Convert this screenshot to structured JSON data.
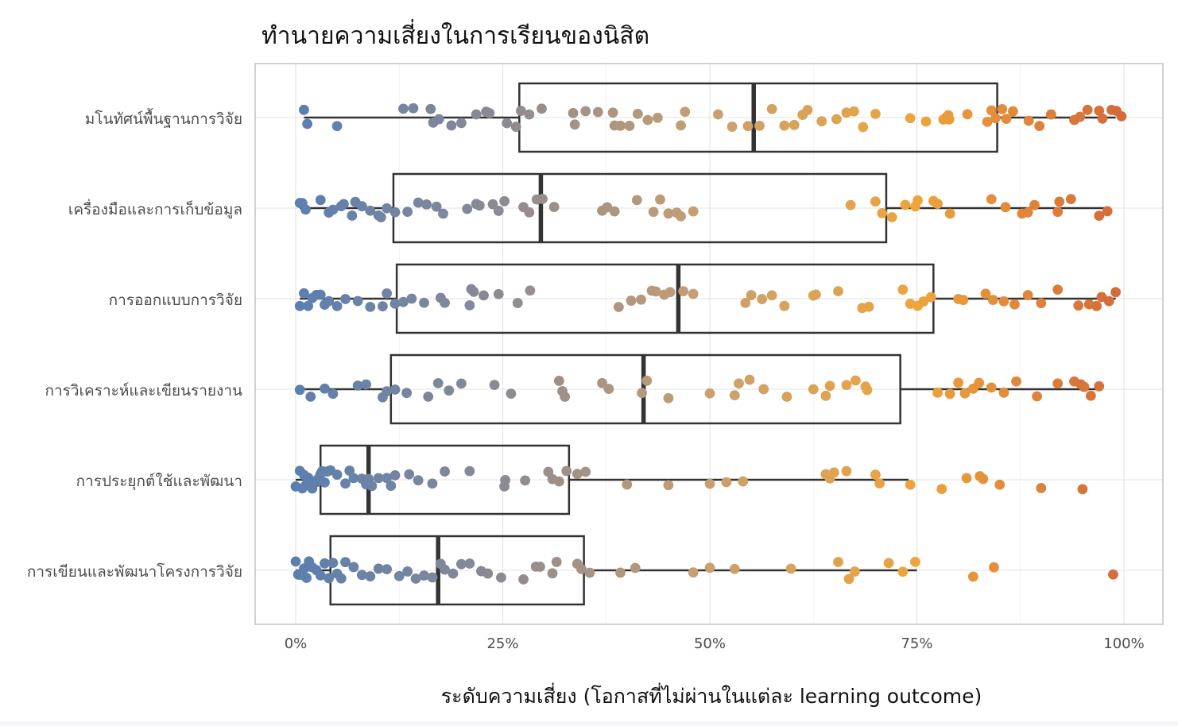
{
  "chart_data": {
    "type": "box_jitter",
    "title": "ทำนายความเสี่ยงในการเรียนของนิสิต",
    "xlabel": "ระดับความเสี่ยง (โอกาสที่ไม่ผ่านในแต่ละ learning outcome)",
    "ylabel": "",
    "xlim": [
      0,
      1
    ],
    "x_ticks": [
      {
        "value": 0,
        "label": "0%"
      },
      {
        "value": 0.25,
        "label": "25%"
      },
      {
        "value": 0.5,
        "label": "50%"
      },
      {
        "value": 0.75,
        "label": "75%"
      },
      {
        "value": 1,
        "label": "100%"
      }
    ],
    "grid": true,
    "legend": "none",
    "color_scale": [
      "#5a7fb0",
      "#8d8a92",
      "#c9a071",
      "#eda53c",
      "#d4693a"
    ],
    "categories": [
      {
        "name": "มโนทัศน์พื้นฐานการวิจัย",
        "q1": 0.27,
        "median": 0.553,
        "q3": 0.847,
        "whisker_low": 0.01,
        "whisker_high": 0.99,
        "points": [
          0.01,
          0.014,
          0.05,
          0.13,
          0.142,
          0.163,
          0.166,
          0.173,
          0.188,
          0.2,
          0.218,
          0.23,
          0.234,
          0.255,
          0.266,
          0.272,
          0.282,
          0.297,
          0.335,
          0.35,
          0.337,
          0.365,
          0.385,
          0.383,
          0.392,
          0.403,
          0.413,
          0.425,
          0.437,
          0.47,
          0.465,
          0.51,
          0.527,
          0.546,
          0.56,
          0.575,
          0.59,
          0.602,
          0.612,
          0.618,
          0.635,
          0.653,
          0.665,
          0.674,
          0.685,
          0.7,
          0.742,
          0.761,
          0.782,
          0.785,
          0.788,
          0.789,
          0.811,
          0.835,
          0.84,
          0.845,
          0.853,
          0.858,
          0.866,
          0.885,
          0.898,
          0.912,
          0.94,
          0.947,
          0.956,
          0.97,
          0.974,
          0.985,
          0.991,
          0.997
        ]
      },
      {
        "name": "เครื่องมือและการเก็บข้อมูล",
        "q1": 0.118,
        "median": 0.296,
        "q3": 0.713,
        "whisker_low": 0.005,
        "whisker_high": 0.98,
        "points": [
          0.005,
          0.008,
          0.012,
          0.03,
          0.04,
          0.045,
          0.055,
          0.058,
          0.068,
          0.072,
          0.08,
          0.09,
          0.1,
          0.103,
          0.11,
          0.12,
          0.135,
          0.148,
          0.158,
          0.17,
          0.178,
          0.207,
          0.218,
          0.222,
          0.238,
          0.245,
          0.252,
          0.275,
          0.282,
          0.291,
          0.298,
          0.312,
          0.37,
          0.376,
          0.385,
          0.412,
          0.432,
          0.44,
          0.45,
          0.46,
          0.465,
          0.48,
          0.67,
          0.7,
          0.708,
          0.72,
          0.736,
          0.748,
          0.751,
          0.77,
          0.775,
          0.79,
          0.84,
          0.857,
          0.877,
          0.884,
          0.892,
          0.92,
          0.922,
          0.936,
          0.97,
          0.98
        ]
      },
      {
        "name": "การออกแบบการวิจัย",
        "q1": 0.122,
        "median": 0.462,
        "q3": 0.77,
        "whisker_low": 0.005,
        "whisker_high": 0.99,
        "points": [
          0.005,
          0.01,
          0.015,
          0.02,
          0.025,
          0.03,
          0.035,
          0.04,
          0.05,
          0.06,
          0.075,
          0.09,
          0.105,
          0.11,
          0.12,
          0.13,
          0.14,
          0.155,
          0.175,
          0.18,
          0.21,
          0.212,
          0.215,
          0.227,
          0.245,
          0.268,
          0.283,
          0.39,
          0.405,
          0.417,
          0.43,
          0.435,
          0.445,
          0.452,
          0.468,
          0.48,
          0.543,
          0.55,
          0.563,
          0.575,
          0.59,
          0.625,
          0.628,
          0.655,
          0.684,
          0.692,
          0.733,
          0.742,
          0.751,
          0.758,
          0.767,
          0.8,
          0.806,
          0.833,
          0.842,
          0.855,
          0.868,
          0.884,
          0.9,
          0.92,
          0.945,
          0.958,
          0.967,
          0.973,
          0.982,
          0.99
        ]
      },
      {
        "name": "การวิเคราะห์และเขียนรายงาน",
        "q1": 0.115,
        "median": 0.42,
        "q3": 0.73,
        "whisker_low": 0.005,
        "whisker_high": 0.97,
        "points": [
          0.005,
          0.018,
          0.035,
          0.045,
          0.075,
          0.085,
          0.105,
          0.11,
          0.12,
          0.134,
          0.16,
          0.172,
          0.185,
          0.2,
          0.24,
          0.26,
          0.318,
          0.322,
          0.325,
          0.37,
          0.378,
          0.418,
          0.424,
          0.45,
          0.5,
          0.53,
          0.535,
          0.548,
          0.565,
          0.593,
          0.625,
          0.64,
          0.645,
          0.665,
          0.676,
          0.688,
          0.69,
          0.775,
          0.79,
          0.8,
          0.808,
          0.818,
          0.825,
          0.84,
          0.855,
          0.87,
          0.895,
          0.92,
          0.94,
          0.948,
          0.952,
          0.96,
          0.97
        ]
      },
      {
        "name": "การประยุกต์ใช้และพัฒนา",
        "q1": 0.03,
        "median": 0.088,
        "q3": 0.33,
        "whisker_low": 0.0,
        "whisker_high": 0.74,
        "points": [
          0.0,
          0.005,
          0.008,
          0.01,
          0.012,
          0.015,
          0.018,
          0.02,
          0.022,
          0.025,
          0.028,
          0.03,
          0.032,
          0.035,
          0.038,
          0.042,
          0.05,
          0.06,
          0.065,
          0.07,
          0.08,
          0.085,
          0.088,
          0.092,
          0.1,
          0.11,
          0.115,
          0.12,
          0.137,
          0.148,
          0.165,
          0.18,
          0.21,
          0.252,
          0.253,
          0.277,
          0.305,
          0.31,
          0.318,
          0.327,
          0.34,
          0.35,
          0.4,
          0.45,
          0.5,
          0.52,
          0.54,
          0.64,
          0.645,
          0.65,
          0.665,
          0.7,
          0.705,
          0.742,
          0.78,
          0.81,
          0.826,
          0.83,
          0.85,
          0.9,
          0.95
        ]
      },
      {
        "name": "การเขียนและพัฒนาโครงการวิจัย",
        "q1": 0.042,
        "median": 0.172,
        "q3": 0.348,
        "whisker_low": 0.0,
        "whisker_high": 0.75,
        "points": [
          0.0,
          0.003,
          0.006,
          0.01,
          0.013,
          0.016,
          0.02,
          0.025,
          0.03,
          0.035,
          0.04,
          0.045,
          0.05,
          0.055,
          0.06,
          0.07,
          0.08,
          0.09,
          0.1,
          0.11,
          0.125,
          0.135,
          0.145,
          0.155,
          0.165,
          0.175,
          0.18,
          0.19,
          0.2,
          0.21,
          0.224,
          0.232,
          0.248,
          0.275,
          0.29,
          0.295,
          0.31,
          0.315,
          0.34,
          0.345,
          0.355,
          0.392,
          0.41,
          0.48,
          0.5,
          0.53,
          0.598,
          0.655,
          0.668,
          0.675,
          0.716,
          0.733,
          0.748,
          0.818,
          0.843,
          0.987
        ]
      }
    ]
  }
}
